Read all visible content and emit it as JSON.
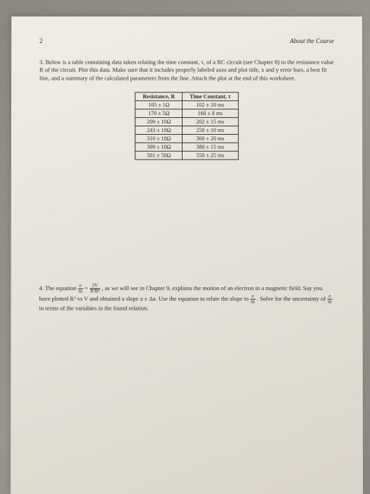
{
  "header": {
    "page_number": "2",
    "title": "About the Course"
  },
  "problem3": {
    "number": "3.",
    "text": "Below is a table containing data taken relating the time constant, τ, of a RC circuit (see Chapter 8) to the resistance value R of the circuit. Plot this data. Make sure that it includes properly labeled axes and plot title, x and y error bars, a best fit line, and a summary of the calculated parameters from the line. Attach the plot at the end of this worksheet."
  },
  "table": {
    "headers": {
      "col1": "Resistance, R",
      "col2": "Time Constant, τ"
    },
    "rows": [
      {
        "r": "105 ± 1Ω",
        "t": "102 ± 10 ms"
      },
      {
        "r": "170 ± 5Ω",
        "t": "160 ± 8 ms"
      },
      {
        "r": "200 ± 10Ω",
        "t": "202 ± 15 ms"
      },
      {
        "r": "243 ± 10Ω",
        "t": "250 ± 10 ms"
      },
      {
        "r": "310 ± 10Ω",
        "t": "300 ± 20 ms"
      },
      {
        "r": "399 ± 10Ω",
        "t": "380 ± 15 ms"
      },
      {
        "r": "501 ± 50Ω",
        "t": "550 ± 25 ms"
      }
    ]
  },
  "problem4": {
    "number": "4.",
    "pre": "The equation ",
    "eq_lhs_n": "e",
    "eq_lhs_d": "m",
    "eq_mid": " = ",
    "eq_rhs_n": "2V",
    "eq_rhs_d": "R²B²",
    "text1": ", as we will see in Chapter 9, explains the motion of an electron in a magnetic field. Say you have plotted R² vs V and obtained a slope a ± Δa. Use the equation to relate the slope to ",
    "f_n": "e",
    "f_d": "m",
    "text2": ". Solve for the uncertainty of ",
    "f2_n": "e",
    "f2_d": "m",
    "text3": " in terms of the variables in the found relation."
  }
}
